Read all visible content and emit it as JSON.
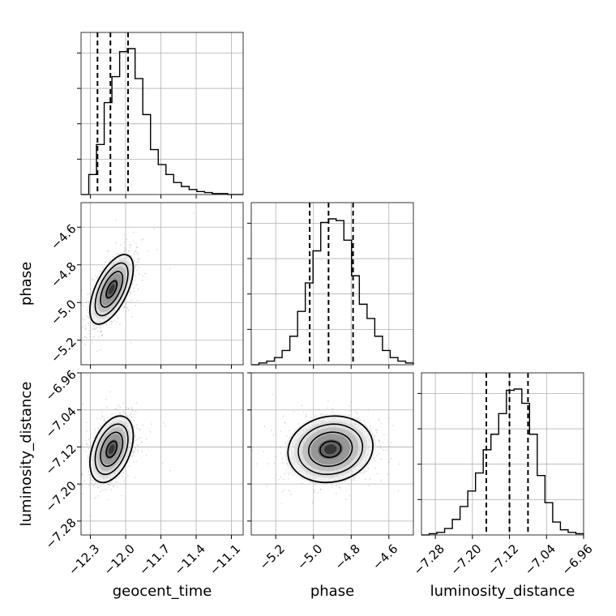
{
  "chart_data": {
    "type": "corner",
    "parameters": [
      "geocent_time",
      "phase",
      "luminosity_distance"
    ],
    "axis_titles": {
      "x": [
        "geocent_time",
        "phase",
        "luminosity_distance"
      ],
      "y": [
        "phase",
        "luminosity_distance"
      ]
    },
    "ranges": {
      "geocent_time": [
        -12.38,
        -11.0
      ],
      "phase": [
        -5.33,
        -4.47
      ],
      "luminosity_distance": [
        -7.31,
        -6.96
      ]
    },
    "ticks": {
      "geocent_time": {
        "values": [
          -12.3,
          -12.0,
          -11.7,
          -11.4,
          -11.1
        ],
        "labels": [
          "−12.3",
          "−12.0",
          "−11.7",
          "−11.4",
          "−11.1"
        ]
      },
      "phase": {
        "values": [
          -5.2,
          -5.0,
          -4.8,
          -4.6
        ],
        "labels": [
          "−5.2",
          "−5.0",
          "−4.8",
          "−4.6"
        ]
      },
      "luminosity_distance": {
        "values": [
          -7.28,
          -7.2,
          -7.12,
          -7.04,
          -6.96
        ],
        "labels": [
          "−7.28",
          "−7.20",
          "−7.12",
          "−7.04",
          "−6.96"
        ]
      }
    },
    "quantiles": {
      "geocent_time": [
        -12.24,
        -12.13,
        -11.98
      ],
      "phase": [
        -5.02,
        -4.92,
        -4.79
      ],
      "luminosity_distance": [
        -7.17,
        -7.12,
        -7.08
      ]
    },
    "histograms": {
      "geocent_time": {
        "range": [
          -12.38,
          -11.0
        ],
        "counts": [
          0,
          20,
          50,
          92,
          118,
          143,
          146,
          116,
          80,
          45,
          30,
          20,
          12,
          8,
          5,
          3,
          2,
          1,
          1,
          0,
          0
        ]
      },
      "phase": {
        "range": [
          -5.33,
          -4.47
        ],
        "counts": [
          0,
          1,
          2,
          4,
          8,
          16,
          30,
          46,
          64,
          80,
          82,
          81,
          70,
          50,
          34,
          26,
          16,
          8,
          4,
          2,
          1
        ]
      },
      "luminosity_distance": {
        "range": [
          -7.31,
          -6.96
        ],
        "counts": [
          0,
          1,
          2,
          5,
          12,
          22,
          34,
          48,
          66,
          78,
          94,
          112,
          113,
          102,
          78,
          46,
          25,
          10,
          4,
          2,
          1
        ]
      }
    },
    "pairs": [
      {
        "x": "geocent_time",
        "y": "phase",
        "mean": [
          -12.12,
          -4.93
        ],
        "sd": [
          0.09,
          0.09
        ],
        "corr": 0.6
      },
      {
        "x": "geocent_time",
        "y": "luminosity_distance",
        "mean": [
          -12.12,
          -7.125
        ],
        "sd": [
          0.09,
          0.035
        ],
        "corr": 0.4
      },
      {
        "x": "phase",
        "y": "luminosity_distance",
        "mean": [
          -4.91,
          -7.125
        ],
        "sd": [
          0.11,
          0.035
        ],
        "corr": 0.1
      }
    ],
    "grid": true,
    "line_color": "#000000",
    "point_color": "#8a8a8a",
    "grid_color": "#b0b0b0"
  }
}
